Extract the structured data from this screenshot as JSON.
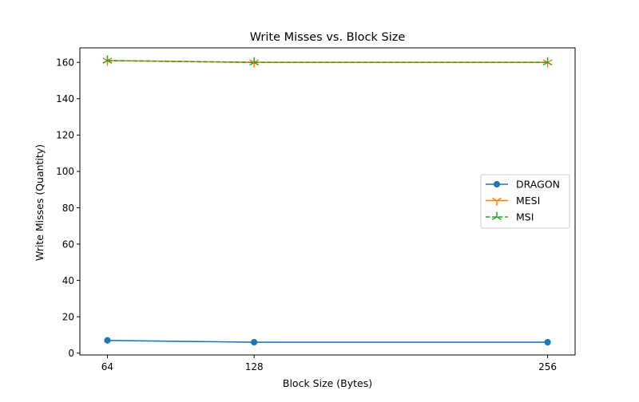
{
  "chart_data": {
    "type": "line",
    "title": "Write Misses vs. Block Size",
    "xlabel": "Block Size (Bytes)",
    "ylabel": "Write Misses (Quantity)",
    "x": [
      64,
      128,
      256
    ],
    "xticks": [
      "64",
      "128",
      "256"
    ],
    "xlim": [
      52,
      268
    ],
    "ylim": [
      -1,
      168
    ],
    "yticks": [
      0,
      20,
      40,
      60,
      80,
      100,
      120,
      140,
      160
    ],
    "grid": false,
    "legend_position": "center-right",
    "series": [
      {
        "name": "DRAGON",
        "values": [
          7,
          6,
          6
        ],
        "color": "#1f77b4",
        "marker": "circle",
        "linestyle": "solid"
      },
      {
        "name": "MESI",
        "values": [
          161,
          160,
          160
        ],
        "color": "#ff7f0e",
        "marker": "tri_down",
        "linestyle": "solid"
      },
      {
        "name": "MSI",
        "values": [
          161,
          160,
          160
        ],
        "color": "#2ca02c",
        "marker": "tri_up",
        "linestyle": "dashed"
      }
    ]
  }
}
